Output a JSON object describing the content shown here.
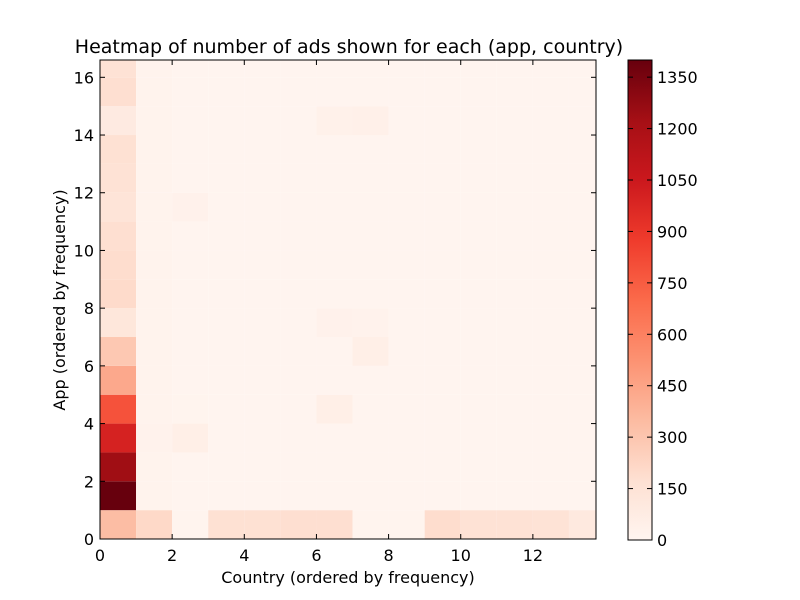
{
  "chart_data": {
    "type": "heatmap",
    "title": "Heatmap of number of ads shown for each (app, country)",
    "xlabel": "Country (ordered by frequency)",
    "ylabel": "App (ordered by frequency)",
    "xlim": [
      0,
      13.75
    ],
    "ylim": [
      0,
      16.6
    ],
    "x_ticks": [
      0,
      2,
      4,
      6,
      8,
      10,
      12
    ],
    "y_ticks": [
      0,
      2,
      4,
      6,
      8,
      10,
      12,
      14,
      16
    ],
    "colormap": "Reds",
    "colorbar": {
      "min": 0,
      "max": 1400,
      "ticks": [
        0,
        150,
        300,
        450,
        600,
        750,
        900,
        1050,
        1200,
        1350
      ]
    },
    "grid": false,
    "rows_bottom_to_top": [
      [
        340,
        210,
        10,
        170,
        170,
        180,
        180,
        10,
        10,
        190,
        160,
        160,
        150,
        100
      ],
      [
        1400,
        20,
        5,
        5,
        5,
        5,
        5,
        5,
        5,
        5,
        5,
        5,
        5,
        5
      ],
      [
        1240,
        20,
        5,
        5,
        5,
        5,
        5,
        5,
        5,
        5,
        5,
        5,
        5,
        5
      ],
      [
        1000,
        25,
        50,
        5,
        5,
        5,
        5,
        5,
        5,
        5,
        5,
        5,
        5,
        5
      ],
      [
        790,
        20,
        10,
        5,
        5,
        5,
        50,
        5,
        5,
        5,
        5,
        5,
        5,
        5
      ],
      [
        430,
        20,
        5,
        5,
        5,
        5,
        5,
        5,
        5,
        5,
        5,
        5,
        5,
        5
      ],
      [
        290,
        20,
        5,
        5,
        5,
        5,
        5,
        50,
        5,
        5,
        5,
        5,
        5,
        5
      ],
      [
        120,
        15,
        5,
        5,
        5,
        5,
        30,
        25,
        5,
        5,
        5,
        5,
        5,
        5
      ],
      [
        200,
        15,
        5,
        5,
        5,
        5,
        5,
        5,
        5,
        5,
        5,
        5,
        5,
        5
      ],
      [
        190,
        15,
        5,
        5,
        5,
        5,
        5,
        5,
        5,
        5,
        5,
        5,
        5,
        5
      ],
      [
        180,
        15,
        5,
        5,
        5,
        5,
        5,
        5,
        5,
        5,
        5,
        5,
        5,
        5
      ],
      [
        140,
        15,
        30,
        5,
        5,
        5,
        5,
        5,
        5,
        5,
        5,
        5,
        5,
        5
      ],
      [
        160,
        15,
        5,
        5,
        5,
        5,
        5,
        5,
        5,
        5,
        5,
        5,
        5,
        5
      ],
      [
        170,
        15,
        5,
        5,
        5,
        5,
        5,
        5,
        5,
        5,
        5,
        5,
        5,
        5
      ],
      [
        90,
        15,
        5,
        5,
        5,
        5,
        35,
        40,
        5,
        5,
        5,
        5,
        5,
        5
      ],
      [
        180,
        20,
        5,
        5,
        5,
        5,
        5,
        5,
        5,
        5,
        5,
        5,
        5,
        5
      ],
      [
        160,
        15,
        5,
        5,
        5,
        5,
        5,
        5,
        5,
        5,
        5,
        5,
        5,
        5
      ]
    ]
  }
}
